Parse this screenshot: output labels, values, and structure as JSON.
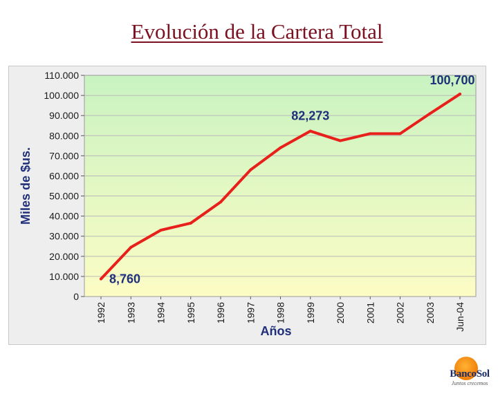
{
  "slide": {
    "title": "Evolución de la Cartera Total"
  },
  "logo": {
    "name": "BancoSol",
    "tagline": "Juntos crecemos"
  },
  "colors": {
    "title": "#7a1020",
    "line": "#e8201c",
    "label": "#1f2f7a",
    "plot_top": "#c9f3c2",
    "plot_bottom": "#fcfcc4"
  },
  "chart_data": {
    "type": "line",
    "title": "",
    "xlabel": "Años",
    "ylabel": "Miles de $us.",
    "categories": [
      "1992",
      "1993",
      "1994",
      "1995",
      "1996",
      "1997",
      "1998",
      "1999",
      "2000",
      "2001",
      "2002",
      "2003",
      "Jun-04"
    ],
    "series": [
      {
        "name": "Cartera Total",
        "values": [
          8760,
          24500,
          33000,
          36500,
          47000,
          63000,
          74000,
          82273,
          77500,
          81000,
          81000,
          91000,
          100700
        ]
      }
    ],
    "ylim": [
      0,
      110000
    ],
    "yticks": [
      0,
      10000,
      20000,
      30000,
      40000,
      50000,
      60000,
      70000,
      80000,
      90000,
      100000,
      110000
    ],
    "ytick_labels": [
      "0",
      "10.000",
      "20.000",
      "30.000",
      "40.000",
      "50.000",
      "60.000",
      "70.000",
      "80.000",
      "90.000",
      "100.000",
      "110.000"
    ],
    "grid": true,
    "annotations": [
      {
        "index": 0,
        "text": "8,760"
      },
      {
        "index": 7,
        "text": "82,273"
      },
      {
        "index": 12,
        "text": "100,700"
      }
    ]
  }
}
